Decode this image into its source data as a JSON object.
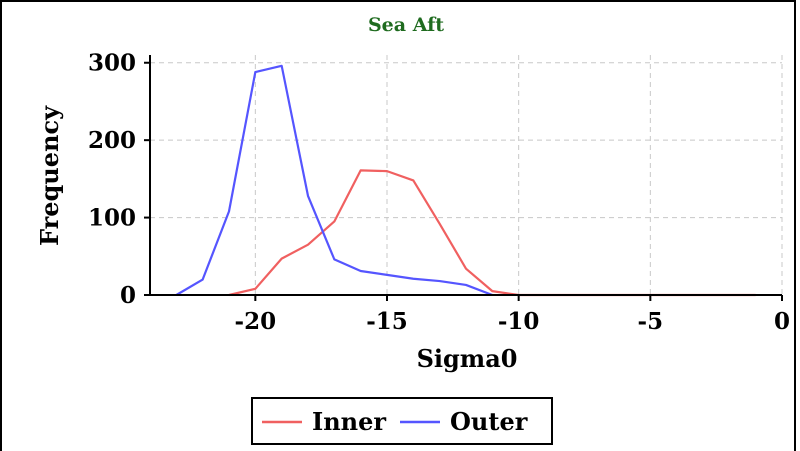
{
  "chart_data": {
    "type": "line",
    "title": "Sea Aft",
    "xlabel": "Sigma0",
    "ylabel": "Frequency",
    "xlim": [
      -24,
      0
    ],
    "ylim": [
      0,
      310
    ],
    "xticks": [
      -20,
      -15,
      -10,
      -5,
      0
    ],
    "yticks": [
      0,
      100,
      200,
      300
    ],
    "grid": true,
    "legend_position": "bottom-center",
    "series": [
      {
        "name": "Inner",
        "color": "#f06060",
        "x": [
          -21,
          -20,
          -19,
          -18,
          -17,
          -16,
          -15,
          -14,
          -13,
          -12,
          -11,
          -10,
          -9,
          -8,
          -7,
          -6,
          -5,
          -4,
          -3,
          -2,
          -1
        ],
        "y": [
          0,
          8,
          47,
          65,
          95,
          161,
          160,
          148,
          92,
          34,
          5,
          0,
          0,
          0,
          0,
          0,
          0,
          0,
          0,
          0,
          0
        ]
      },
      {
        "name": "Outer",
        "color": "#5555ff",
        "x": [
          -23,
          -22,
          -21,
          -20,
          -19,
          -18,
          -17,
          -16,
          -15,
          -14,
          -13,
          -12,
          -11
        ],
        "y": [
          0,
          20,
          108,
          288,
          296,
          128,
          46,
          31,
          26,
          21,
          18,
          13,
          0
        ]
      }
    ]
  }
}
